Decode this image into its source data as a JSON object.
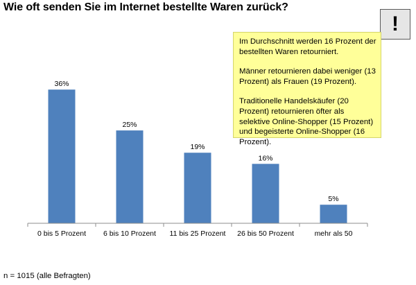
{
  "title": "Wie oft senden Sie im Internet bestellte Waren zurück?",
  "alert_symbol": "!",
  "note": {
    "paragraphs": [
      "Im Durchschnitt werden 16 Prozent der bestellten Waren retourniert.",
      "Männer retournieren dabei weniger (13 Prozent) als Frauen (19 Prozent).",
      "Traditionelle Handelskäufer (20 Prozent) retournieren öfter als selektive Online-Shopper (15 Prozent) und begeisterte Online-Shopper (16 Prozent)."
    ]
  },
  "footer": "n = 1015 (alle Befragten)",
  "colors": {
    "bar": "#4f81bd",
    "note_bg": "#ffff99",
    "alert_bg": "#e6e6e6"
  },
  "chart_data": {
    "type": "bar",
    "categories": [
      "0 bis 5 Prozent",
      "6 bis 10 Prozent",
      "11 bis 25 Prozent",
      "26 bis 50 Prozent",
      "mehr als 50"
    ],
    "values": [
      36,
      25,
      19,
      16,
      5
    ],
    "value_labels": [
      "36%",
      "25%",
      "19%",
      "16%",
      "5%"
    ],
    "ylim": [
      0,
      45
    ],
    "grid": false,
    "legend": "none"
  }
}
